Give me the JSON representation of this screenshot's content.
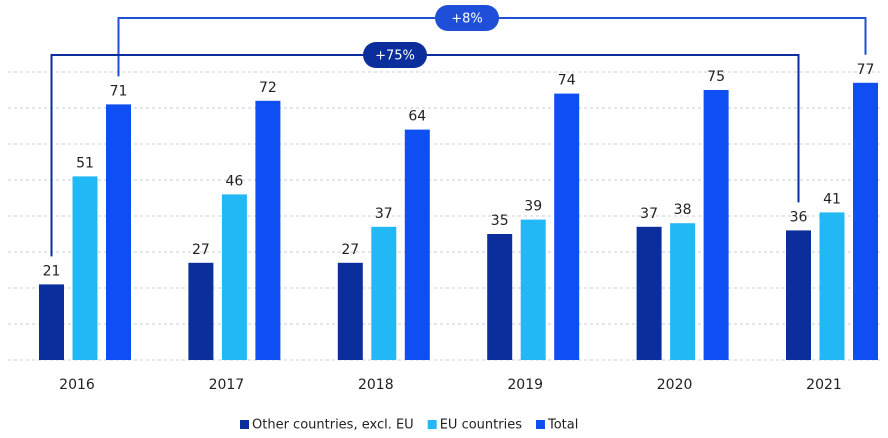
{
  "chart_data": {
    "type": "bar",
    "categories": [
      "2016",
      "2017",
      "2018",
      "2019",
      "2020",
      "2021"
    ],
    "series": [
      {
        "name": "Other countries, excl. EU",
        "color": "#0b2e9c",
        "values": [
          21,
          27,
          27,
          35,
          37,
          36
        ]
      },
      {
        "name": "EU countries",
        "color": "#22b8f5",
        "values": [
          51,
          46,
          37,
          39,
          38,
          41
        ]
      },
      {
        "name": "Total",
        "color": "#0f4ef3",
        "values": [
          71,
          72,
          64,
          74,
          75,
          77
        ]
      }
    ],
    "ylim": [
      0,
      80
    ],
    "yticks": [
      0,
      10,
      20,
      30,
      40,
      50,
      60,
      70,
      80
    ],
    "grid": true,
    "annotations": [
      {
        "text": "+8%"
      },
      {
        "text": "+75%"
      }
    ]
  }
}
